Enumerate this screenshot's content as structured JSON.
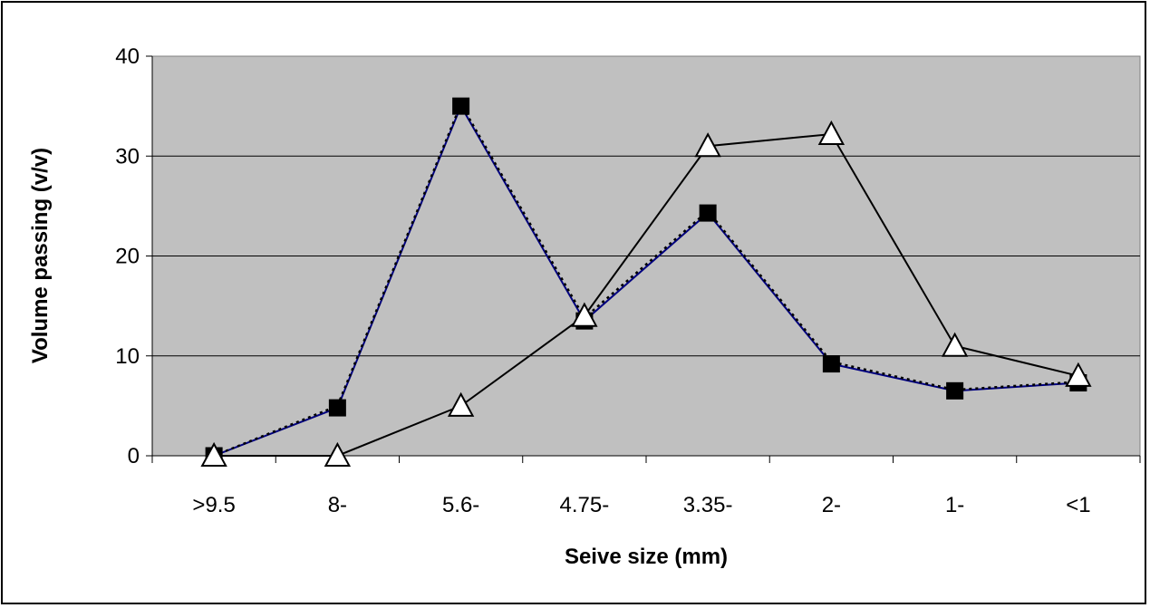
{
  "chart_data": {
    "type": "line",
    "title": "",
    "xlabel": "Seive size (mm)",
    "ylabel": "Volume passing (v/v)",
    "categories": [
      ">9.5",
      "8-",
      "5.6-",
      "4.75-",
      "3.35-",
      "2-",
      "1-",
      "<1"
    ],
    "ylim": [
      0,
      40
    ],
    "yticks": [
      0,
      10,
      20,
      30,
      40
    ],
    "grid": true,
    "legend": "none",
    "plot_background": "#c0c0c0",
    "series": [
      {
        "marker": "filled-square",
        "line_style": "solid",
        "color": "#000080",
        "values": [
          0,
          4.8,
          35,
          13.5,
          24.3,
          9.2,
          6.5,
          7.3
        ]
      },
      {
        "marker": "none",
        "line_style": "dotted",
        "color": "#000000",
        "values": [
          0,
          5.0,
          35.2,
          13.8,
          24.5,
          9.4,
          6.6,
          7.4
        ]
      },
      {
        "marker": "open-triangle",
        "line_style": "solid",
        "color": "#000000",
        "values": [
          0,
          0,
          5,
          14,
          31,
          32.2,
          11,
          8
        ]
      }
    ]
  }
}
